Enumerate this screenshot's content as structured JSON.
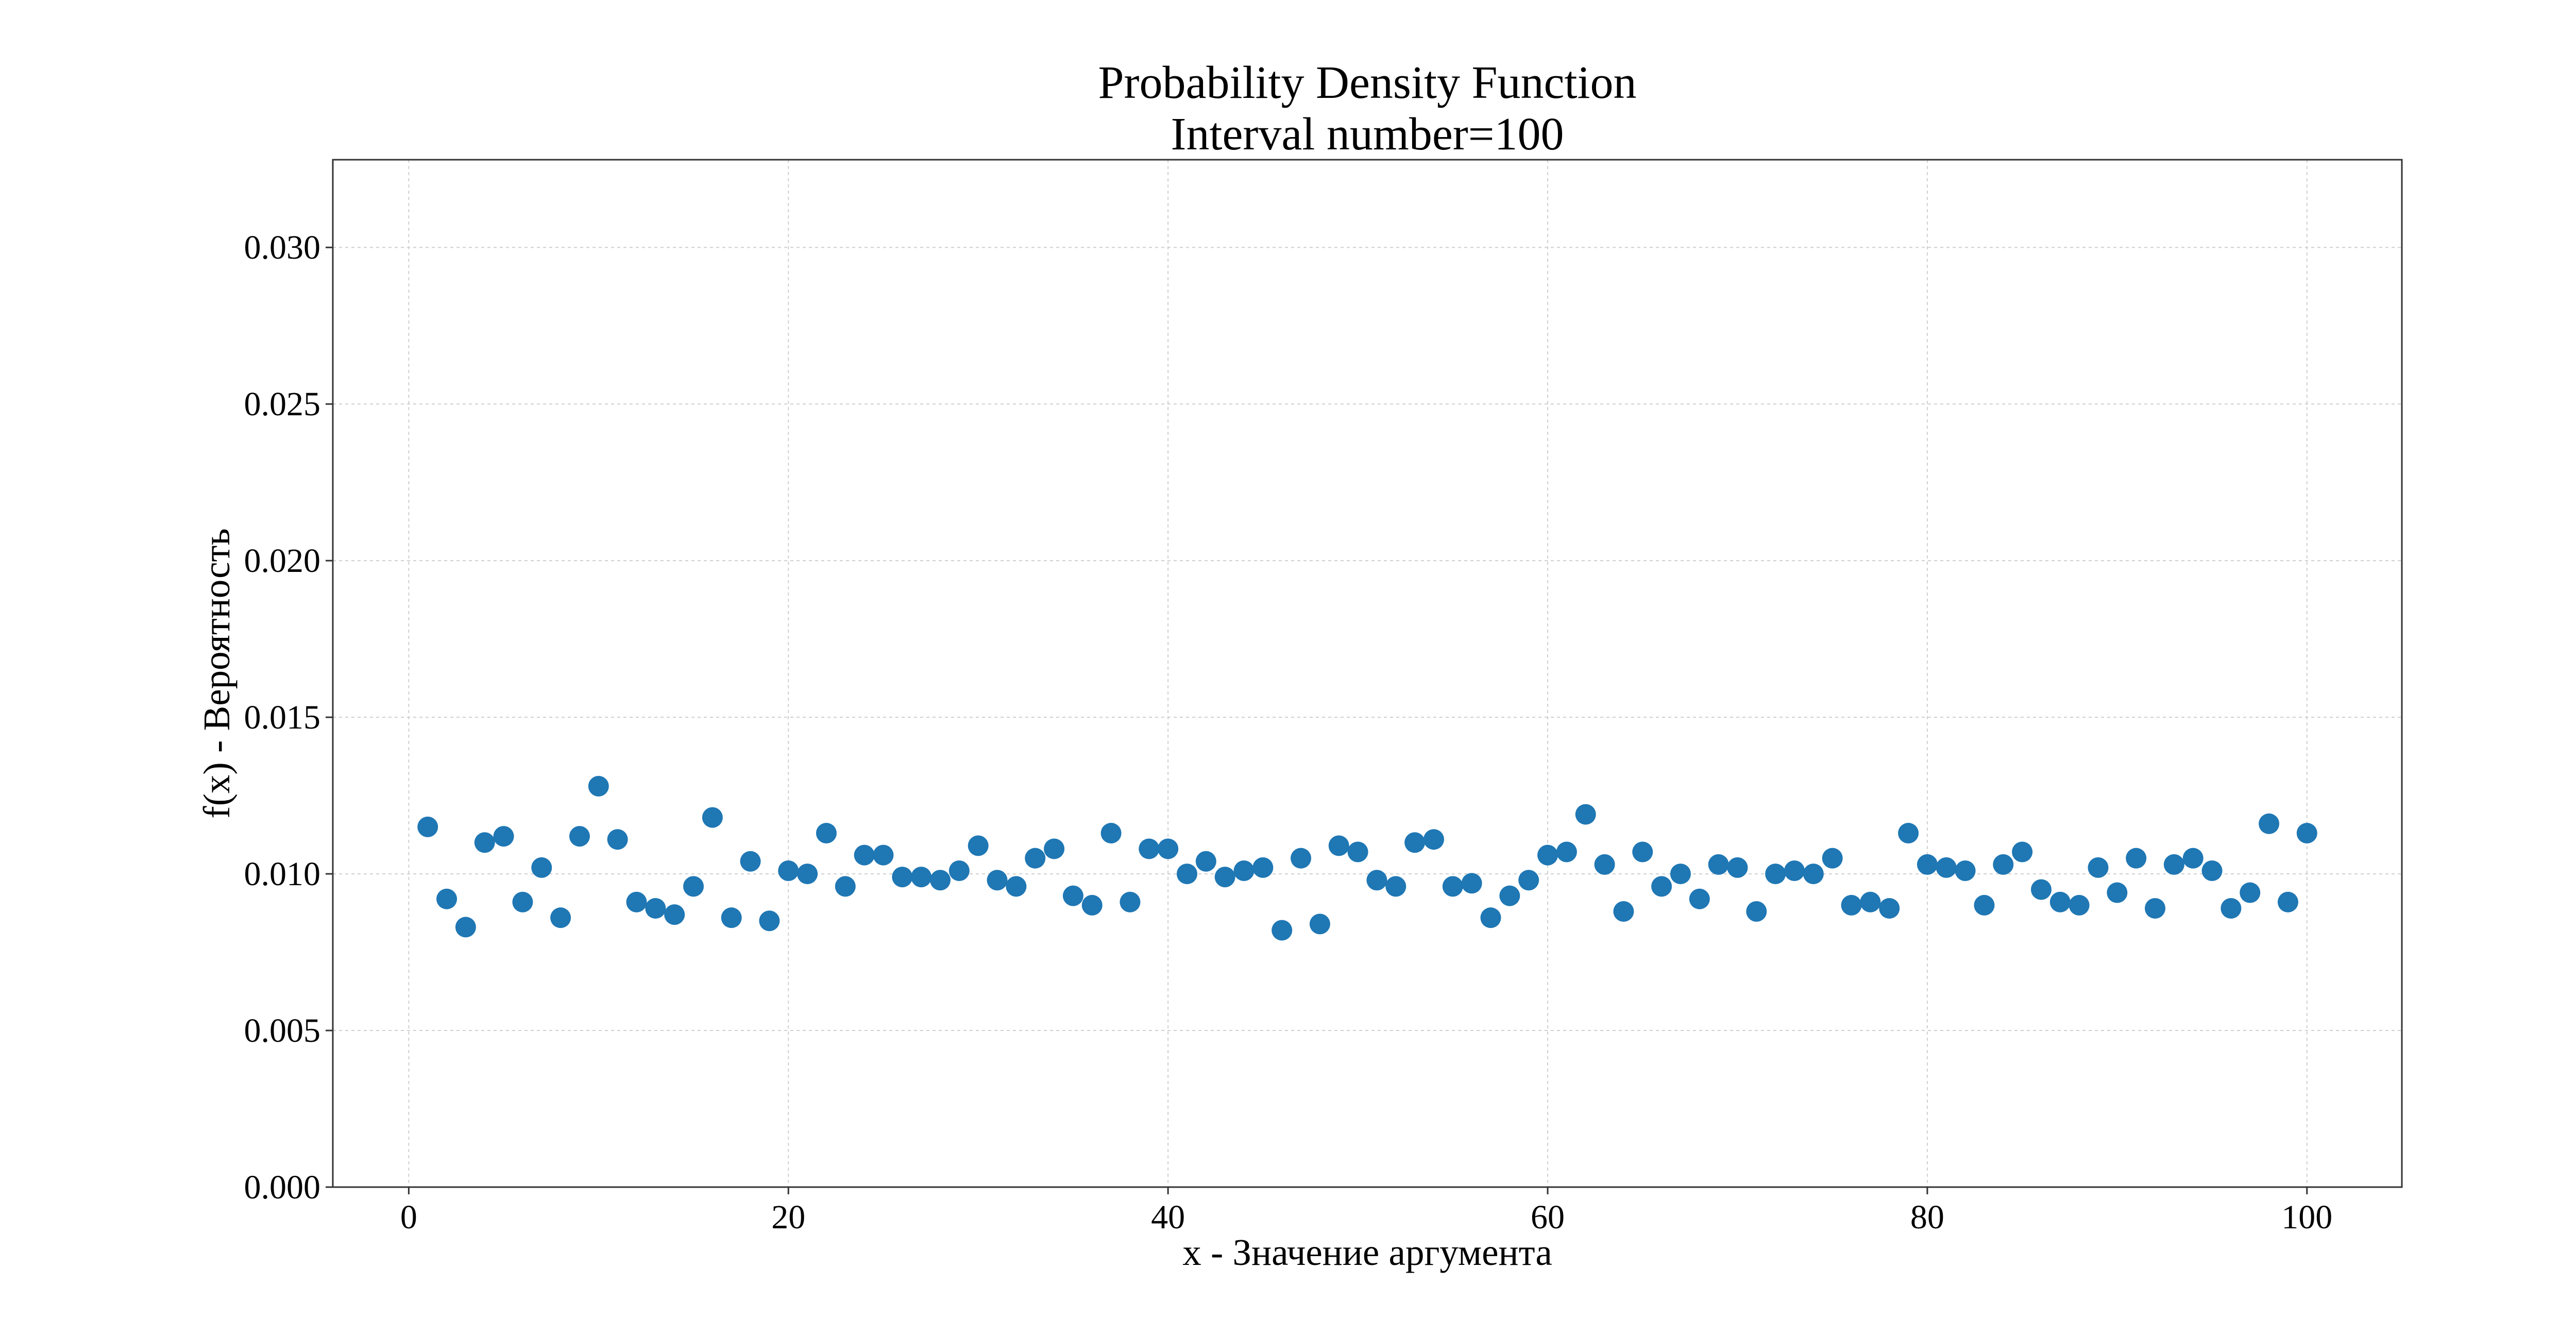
{
  "chart_data": {
    "type": "scatter",
    "title": "Probability Density Function",
    "subtitle": "Interval number=100",
    "xlabel": "x - Значение аргумента",
    "ylabel": "f(x) - Вероятность",
    "xlim": [
      -4,
      105
    ],
    "ylim": [
      0.0,
      0.0328
    ],
    "xticks": [
      0,
      20,
      40,
      60,
      80,
      100
    ],
    "yticks": [
      0.0,
      0.005,
      0.01,
      0.015,
      0.02,
      0.025,
      0.03
    ],
    "xtick_labels": [
      "0",
      "20",
      "40",
      "60",
      "80",
      "100"
    ],
    "ytick_labels": [
      "0.000",
      "0.005",
      "0.010",
      "0.015",
      "0.020",
      "0.025",
      "0.030"
    ],
    "grid": true,
    "point_color": "#1f77b4",
    "x": [
      1,
      2,
      3,
      4,
      5,
      6,
      7,
      8,
      9,
      10,
      11,
      12,
      13,
      14,
      15,
      16,
      17,
      18,
      19,
      20,
      21,
      22,
      23,
      24,
      25,
      26,
      27,
      28,
      29,
      30,
      31,
      32,
      33,
      34,
      35,
      36,
      37,
      38,
      39,
      40,
      41,
      42,
      43,
      44,
      45,
      46,
      47,
      48,
      49,
      50,
      51,
      52,
      53,
      54,
      55,
      56,
      57,
      58,
      59,
      60,
      61,
      62,
      63,
      64,
      65,
      66,
      67,
      68,
      69,
      70,
      71,
      72,
      73,
      74,
      75,
      76,
      77,
      78,
      79,
      80,
      81,
      82,
      83,
      84,
      85,
      86,
      87,
      88,
      89,
      90,
      91,
      92,
      93,
      94,
      95,
      96,
      97,
      98,
      99,
      100
    ],
    "y": [
      0.0115,
      0.0092,
      0.0083,
      0.011,
      0.0112,
      0.0091,
      0.0102,
      0.0086,
      0.0112,
      0.0128,
      0.0111,
      0.0091,
      0.0089,
      0.0087,
      0.0096,
      0.0118,
      0.0086,
      0.0104,
      0.0085,
      0.0101,
      0.01,
      0.0113,
      0.0096,
      0.0106,
      0.0106,
      0.0099,
      0.0099,
      0.0098,
      0.0101,
      0.0109,
      0.0098,
      0.0096,
      0.0105,
      0.0108,
      0.0093,
      0.009,
      0.0113,
      0.0091,
      0.0108,
      0.0108,
      0.01,
      0.0104,
      0.0099,
      0.0101,
      0.0102,
      0.0082,
      0.0105,
      0.0084,
      0.0109,
      0.0107,
      0.0098,
      0.0096,
      0.011,
      0.0111,
      0.0096,
      0.0097,
      0.0086,
      0.0093,
      0.0098,
      0.0106,
      0.0107,
      0.0119,
      0.0103,
      0.0088,
      0.0107,
      0.0096,
      0.01,
      0.0092,
      0.0103,
      0.0102,
      0.0088,
      0.01,
      0.0101,
      0.01,
      0.0105,
      0.009,
      0.0091,
      0.0089,
      0.0113,
      0.0103,
      0.0102,
      0.0101,
      0.009,
      0.0103,
      0.0107,
      0.0095,
      0.0091,
      0.009,
      0.0102,
      0.0094,
      0.0105,
      0.0089,
      0.0103,
      0.0105,
      0.0101,
      0.0089,
      0.0094,
      0.0116,
      0.0091,
      0.0113
    ]
  }
}
